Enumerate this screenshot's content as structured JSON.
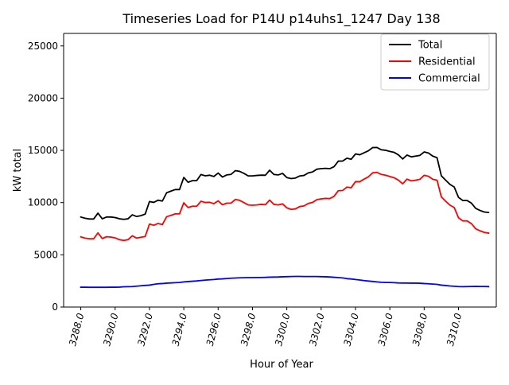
{
  "chart_data": {
    "type": "line",
    "title": "Timeseries Load for P14U p14uhs1_1247  Day 138",
    "xlabel": "Hour of Year",
    "ylabel": "kW total",
    "xlim": [
      3287.0,
      3312.2
    ],
    "ylim": [
      0,
      26200
    ],
    "xticks": [
      3288,
      3290,
      3292,
      3294,
      3296,
      3298,
      3300,
      3302,
      3304,
      3306,
      3308,
      3310
    ],
    "xtick_labels": [
      "3288.0",
      "3290.0",
      "3292.0",
      "3294.0",
      "3296.0",
      "3298.0",
      "3300.0",
      "3302.0",
      "3304.0",
      "3306.0",
      "3308.0",
      "3310.0"
    ],
    "yticks": [
      0,
      5000,
      10000,
      15000,
      20000,
      25000
    ],
    "ytick_labels": [
      "0",
      "5000",
      "10000",
      "15000",
      "20000",
      "25000"
    ],
    "legend_position": "top-right",
    "x_start": 3288.0,
    "x_step": 0.25,
    "series": [
      {
        "name": "Total",
        "color": "#000000",
        "values": [
          8620,
          8500,
          8430,
          8430,
          8990,
          8450,
          8620,
          8620,
          8570,
          8450,
          8400,
          8450,
          8830,
          8670,
          8750,
          8900,
          10100,
          10020,
          10230,
          10150,
          10940,
          11100,
          11250,
          11250,
          12410,
          11950,
          12100,
          12100,
          12690,
          12570,
          12620,
          12500,
          12830,
          12450,
          12650,
          12700,
          13060,
          12990,
          12800,
          12560,
          12560,
          12600,
          12630,
          12620,
          13100,
          12690,
          12650,
          12800,
          12400,
          12300,
          12350,
          12550,
          12600,
          12840,
          12940,
          13200,
          13250,
          13280,
          13250,
          13440,
          13970,
          13980,
          14250,
          14150,
          14660,
          14580,
          14770,
          14960,
          15270,
          15280,
          15060,
          15010,
          14900,
          14810,
          14570,
          14180,
          14550,
          14380,
          14450,
          14520,
          14850,
          14750,
          14450,
          14300,
          12570,
          12150,
          11750,
          11490,
          10500,
          10200,
          10200,
          9950,
          9450,
          9250,
          9100,
          9050
        ]
      },
      {
        "name": "Residential",
        "color": "#ff0000",
        "values": [
          6720,
          6600,
          6540,
          6540,
          7100,
          6560,
          6730,
          6700,
          6620,
          6450,
          6380,
          6450,
          6820,
          6600,
          6680,
          6750,
          7950,
          7830,
          8000,
          7900,
          8650,
          8780,
          8920,
          8920,
          9980,
          9530,
          9650,
          9650,
          10130,
          10010,
          10030,
          9900,
          10170,
          9790,
          9950,
          9950,
          10300,
          10220,
          10000,
          9780,
          9750,
          9780,
          9830,
          9800,
          10240,
          9830,
          9780,
          9880,
          9500,
          9350,
          9400,
          9620,
          9680,
          9920,
          10020,
          10280,
          10360,
          10400,
          10380,
          10600,
          11140,
          11160,
          11480,
          11430,
          12010,
          12000,
          12250,
          12470,
          12850,
          12900,
          12700,
          12620,
          12500,
          12380,
          12150,
          11800,
          12250,
          12080,
          12150,
          12230,
          12610,
          12520,
          12230,
          12150,
          10550,
          10130,
          9760,
          9530,
          8550,
          8250,
          8250,
          7990,
          7500,
          7300,
          7150,
          7080
        ]
      },
      {
        "name": "Commercial",
        "color": "#0000ff",
        "values": [
          1900,
          1900,
          1890,
          1890,
          1890,
          1890,
          1890,
          1900,
          1900,
          1910,
          1940,
          1950,
          1960,
          2000,
          2040,
          2070,
          2100,
          2170,
          2230,
          2250,
          2290,
          2310,
          2330,
          2350,
          2410,
          2440,
          2470,
          2500,
          2540,
          2580,
          2610,
          2640,
          2680,
          2700,
          2730,
          2760,
          2780,
          2800,
          2810,
          2820,
          2820,
          2830,
          2830,
          2840,
          2860,
          2870,
          2880,
          2900,
          2910,
          2920,
          2930,
          2930,
          2920,
          2920,
          2920,
          2920,
          2910,
          2900,
          2880,
          2850,
          2820,
          2790,
          2720,
          2690,
          2640,
          2590,
          2530,
          2490,
          2450,
          2410,
          2370,
          2350,
          2350,
          2330,
          2310,
          2300,
          2300,
          2290,
          2290,
          2280,
          2250,
          2230,
          2200,
          2170,
          2100,
          2060,
          2020,
          1990,
          1960,
          1950,
          1960,
          1970,
          1980,
          1970,
          1970,
          1960
        ]
      }
    ]
  }
}
